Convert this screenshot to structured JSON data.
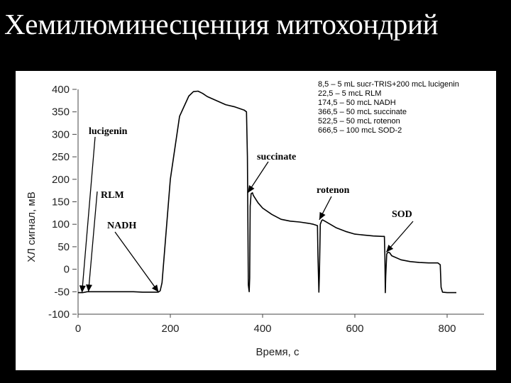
{
  "slide": {
    "title": "Хемилюминесценция митохондрий",
    "background": "#000000",
    "title_color": "#ffffff"
  },
  "chart_data": {
    "type": "line",
    "title": "",
    "xlabel": "Время, с",
    "ylabel": "ХЛ сигнал, мВ",
    "xlim": [
      0,
      880
    ],
    "ylim": [
      -100,
      400
    ],
    "xticks": [
      0,
      200,
      400,
      600,
      800
    ],
    "yticks": [
      -100,
      -50,
      0,
      50,
      100,
      150,
      200,
      250,
      300,
      350,
      400
    ],
    "grid": false,
    "line_color": "#000000",
    "series": [
      {
        "x": [
          0,
          10,
          20,
          40,
          60,
          80,
          100,
          120,
          140,
          160,
          174,
          178,
          182,
          200,
          220,
          240,
          250,
          260,
          270,
          280,
          300,
          320,
          340,
          360,
          365,
          367,
          369,
          371,
          372,
          373,
          375,
          378,
          380,
          390,
          400,
          420,
          440,
          460,
          480,
          500,
          510,
          519,
          520,
          522,
          523,
          525,
          528,
          530,
          540,
          560,
          580,
          600,
          620,
          640,
          660,
          664,
          665,
          666,
          667,
          669,
          672,
          675,
          680,
          700,
          720,
          740,
          760,
          780,
          785,
          787,
          790,
          800,
          820
        ],
        "y": [
          -52,
          -52,
          -50,
          -50,
          -50,
          -50,
          -50,
          -50,
          -51,
          -51,
          -51,
          -48,
          -30,
          200,
          340,
          385,
          395,
          396,
          391,
          384,
          375,
          366,
          361,
          354,
          350,
          250,
          -35,
          -50,
          -20,
          140,
          168,
          170,
          164,
          148,
          136,
          122,
          111,
          107,
          105,
          102,
          100,
          97,
          30,
          -51,
          -15,
          100,
          108,
          110,
          104,
          92,
          84,
          78,
          76,
          74,
          73,
          73,
          30,
          -52,
          -15,
          34,
          38,
          37,
          30,
          21,
          17,
          15,
          14,
          14,
          10,
          -40,
          -51,
          -52,
          -52
        ]
      }
    ],
    "legend": [
      "8,5 – 5 mL sucr-TRIS+200 mcL lucigenin",
      "22,5 – 5 mcL RLM",
      "174,5 – 50 mcL NADH",
      "366,5 – 50 mcL succinate",
      "522,5 – 50 mcL rotenon",
      "666,5 – 100 mcL SOD-2"
    ],
    "legend_placement": "top-right",
    "annotations": [
      {
        "text": "lucigenin",
        "points_to": [
          8.5,
          -52
        ]
      },
      {
        "text": "RLM",
        "points_to": [
          22.5,
          -50
        ]
      },
      {
        "text": "NADH",
        "points_to": [
          174.5,
          -51
        ]
      },
      {
        "text": "succinate",
        "points_to": [
          368,
          170
        ]
      },
      {
        "text": "rotenon",
        "points_to": [
          523,
          110
        ]
      },
      {
        "text": "SOD",
        "points_to": [
          668,
          38
        ]
      }
    ]
  }
}
